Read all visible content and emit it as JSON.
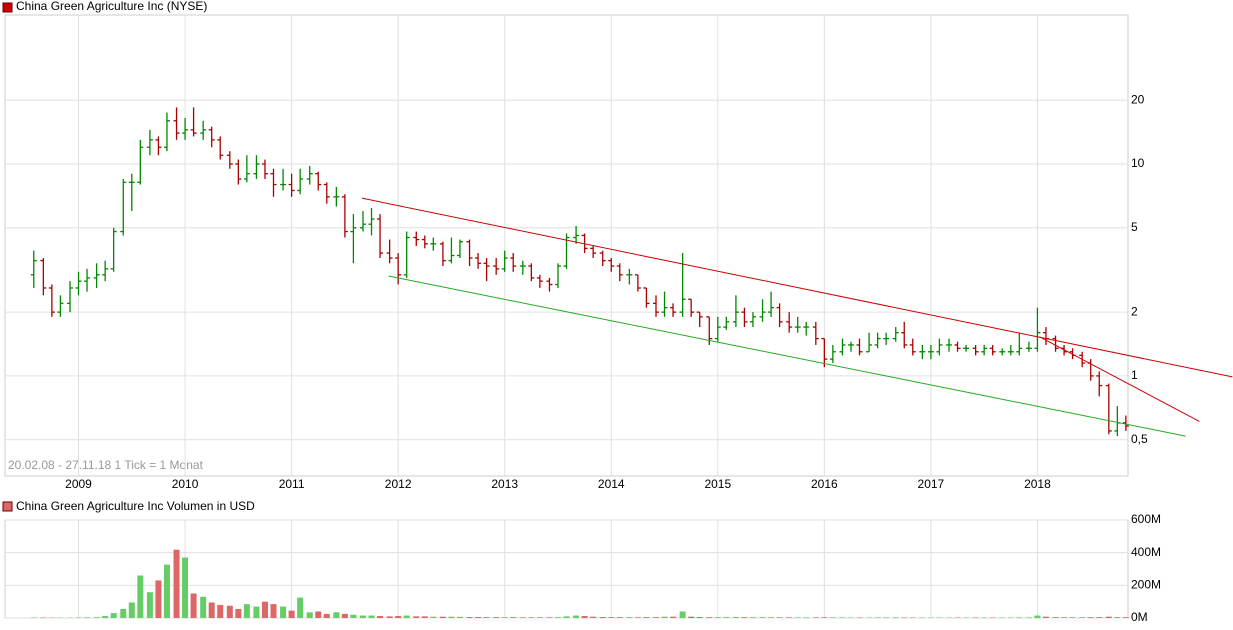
{
  "chart_data": [
    {
      "type": "ohlc",
      "title": "China Green Agriculture Inc (NYSE)",
      "color": "#cc0000",
      "subtitle": "20.02.08 - 27.11.18   1 Tick = 1 Monat",
      "log_scale": true,
      "grid": true,
      "up_color": "#008800",
      "down_color": "#aa0000",
      "xlim": [
        2008.31,
        2018.85
      ],
      "xticks": [
        2009,
        2010,
        2011,
        2012,
        2013,
        2014,
        2015,
        2016,
        2017,
        2018
      ],
      "ylim": [
        0.337,
        50.5
      ],
      "yticks": [
        {
          "value": 0.5,
          "label": "0,5"
        },
        1,
        2,
        5,
        10,
        20
      ],
      "x": [
        2008.58,
        2008.67,
        2008.75,
        2008.83,
        2008.92,
        2009,
        2009.08,
        2009.17,
        2009.25,
        2009.33,
        2009.42,
        2009.5,
        2009.58,
        2009.67,
        2009.75,
        2009.83,
        2009.92,
        2010,
        2010.08,
        2010.17,
        2010.25,
        2010.33,
        2010.42,
        2010.5,
        2010.58,
        2010.67,
        2010.75,
        2010.83,
        2010.92,
        2011,
        2011.08,
        2011.17,
        2011.25,
        2011.33,
        2011.42,
        2011.5,
        2011.58,
        2011.67,
        2011.75,
        2011.83,
        2011.92,
        2012,
        2012.08,
        2012.17,
        2012.25,
        2012.33,
        2012.42,
        2012.5,
        2012.58,
        2012.67,
        2012.75,
        2012.83,
        2012.92,
        2013,
        2013.08,
        2013.17,
        2013.25,
        2013.33,
        2013.42,
        2013.5,
        2013.58,
        2013.67,
        2013.75,
        2013.83,
        2013.92,
        2014,
        2014.08,
        2014.17,
        2014.25,
        2014.33,
        2014.42,
        2014.5,
        2014.58,
        2014.67,
        2014.75,
        2014.83,
        2014.92,
        2015,
        2015.08,
        2015.17,
        2015.25,
        2015.33,
        2015.42,
        2015.5,
        2015.58,
        2015.67,
        2015.75,
        2015.83,
        2015.92,
        2016,
        2016.08,
        2016.17,
        2016.25,
        2016.33,
        2016.42,
        2016.5,
        2016.58,
        2016.67,
        2016.75,
        2016.83,
        2016.92,
        2017,
        2017.08,
        2017.17,
        2017.25,
        2017.33,
        2017.42,
        2017.5,
        2017.58,
        2017.67,
        2017.75,
        2017.83,
        2017.92,
        2018,
        2018.08,
        2018.17,
        2018.25,
        2018.33,
        2018.42,
        2018.5,
        2018.58,
        2018.67,
        2018.75,
        2018.83
      ],
      "open": [
        3.0,
        3.5,
        2.6,
        2.0,
        2.2,
        2.6,
        2.8,
        2.9,
        3.0,
        3.2,
        4.8,
        8.2,
        8.2,
        12,
        13,
        12,
        16,
        14,
        14.5,
        14,
        14.5,
        13,
        11,
        10,
        8.5,
        9,
        10,
        9,
        8,
        8,
        7.5,
        8.5,
        9,
        8,
        7,
        7,
        4.8,
        5,
        5.2,
        5.5,
        3.8,
        3.6,
        3.0,
        4.5,
        4.4,
        4.2,
        4.2,
        3.5,
        3.7,
        4.3,
        3.6,
        3.4,
        3.3,
        3.2,
        3.6,
        3.3,
        3.3,
        2.9,
        2.8,
        2.7,
        3.3,
        4.5,
        4.6,
        4.0,
        3.8,
        3.5,
        3.3,
        3.0,
        3.0,
        2.6,
        2.2,
        2.0,
        2.1,
        2.0,
        2.3,
        2.0,
        1.9,
        1.5,
        1.7,
        1.8,
        2.0,
        1.8,
        1.9,
        2.0,
        2.1,
        1.8,
        1.7,
        1.7,
        1.7,
        1.5,
        1.2,
        1.3,
        1.4,
        1.4,
        1.3,
        1.4,
        1.5,
        1.5,
        1.6,
        1.4,
        1.3,
        1.3,
        1.3,
        1.4,
        1.4,
        1.35,
        1.35,
        1.3,
        1.35,
        1.3,
        1.3,
        1.3,
        1.35,
        1.35,
        1.6,
        1.5,
        1.35,
        1.3,
        1.25,
        1.15,
        1.0,
        0.9,
        0.55,
        0.6
      ],
      "high": [
        3.9,
        3.6,
        2.7,
        2.4,
        2.8,
        3.1,
        3.2,
        3.4,
        3.5,
        5.0,
        8.5,
        9.0,
        13,
        14.5,
        13.5,
        17.5,
        18.5,
        16.5,
        18.5,
        16,
        15,
        13.5,
        11.5,
        10.5,
        11,
        11,
        10.5,
        9.5,
        9.5,
        9,
        9.5,
        9.8,
        9.2,
        8.2,
        7.8,
        7.2,
        5.8,
        6,
        6.2,
        5.8,
        4.4,
        3.8,
        4.8,
        4.8,
        4.6,
        4.5,
        4.3,
        4.5,
        4.4,
        4.4,
        3.8,
        3.6,
        3.6,
        3.9,
        3.8,
        3.5,
        3.4,
        3.0,
        2.9,
        3.4,
        4.7,
        5.1,
        4.7,
        4.1,
        3.9,
        3.6,
        3.4,
        3.2,
        3.0,
        2.6,
        2.4,
        2.5,
        2.2,
        3.8,
        2.3,
        2.0,
        1.9,
        1.9,
        1.9,
        2.4,
        2.1,
        2.0,
        2.3,
        2.5,
        2.2,
        2.0,
        1.9,
        1.8,
        1.8,
        1.5,
        1.4,
        1.5,
        1.45,
        1.5,
        1.6,
        1.6,
        1.6,
        1.7,
        1.8,
        1.5,
        1.4,
        1.4,
        1.5,
        1.5,
        1.45,
        1.4,
        1.4,
        1.4,
        1.4,
        1.35,
        1.4,
        1.6,
        1.45,
        2.1,
        1.7,
        1.55,
        1.4,
        1.35,
        1.3,
        1.2,
        1.05,
        0.92,
        0.72,
        0.65
      ],
      "low": [
        2.6,
        2.4,
        1.9,
        1.9,
        2.0,
        2.4,
        2.5,
        2.6,
        2.8,
        3.1,
        4.6,
        6.0,
        8.0,
        11,
        11,
        11.5,
        13,
        13,
        13.5,
        13,
        12,
        10.5,
        9.5,
        8,
        8.2,
        8.5,
        8.5,
        7,
        7.5,
        7,
        7.2,
        8,
        7.5,
        6.5,
        6.3,
        4.5,
        3.4,
        4.8,
        4.6,
        3.6,
        3.4,
        2.7,
        2.9,
        4.1,
        4.0,
        3.9,
        3.3,
        3.4,
        3.6,
        3.3,
        3.2,
        2.8,
        3.0,
        3.1,
        3.1,
        3.0,
        2.8,
        2.6,
        2.5,
        2.6,
        3.2,
        4.2,
        3.8,
        3.6,
        3.3,
        3.1,
        2.8,
        2.7,
        2.5,
        2.1,
        1.9,
        1.9,
        1.9,
        1.9,
        1.9,
        1.7,
        1.4,
        1.45,
        1.65,
        1.7,
        1.7,
        1.7,
        1.8,
        1.9,
        1.7,
        1.6,
        1.6,
        1.55,
        1.4,
        1.1,
        1.15,
        1.25,
        1.3,
        1.25,
        1.3,
        1.35,
        1.4,
        1.45,
        1.35,
        1.25,
        1.2,
        1.2,
        1.25,
        1.3,
        1.3,
        1.3,
        1.25,
        1.25,
        1.25,
        1.25,
        1.25,
        1.25,
        1.3,
        1.3,
        1.4,
        1.3,
        1.25,
        1.2,
        1.1,
        0.95,
        0.8,
        0.53,
        0.52,
        0.55
      ],
      "close": [
        3.5,
        2.6,
        2.0,
        2.2,
        2.6,
        2.8,
        2.9,
        3.0,
        3.2,
        4.8,
        8.2,
        8.2,
        12,
        13,
        12,
        16,
        14,
        14.5,
        14,
        14.5,
        13,
        11,
        10,
        8.5,
        9,
        10,
        9,
        8,
        8,
        7.5,
        8.5,
        9,
        8,
        7,
        7,
        4.8,
        5,
        5.2,
        5.5,
        3.8,
        3.6,
        3.0,
        4.5,
        4.4,
        4.2,
        4.2,
        3.5,
        3.7,
        4.3,
        3.6,
        3.4,
        3.3,
        3.2,
        3.6,
        3.3,
        3.3,
        2.9,
        2.8,
        2.7,
        3.3,
        4.5,
        4.6,
        4.0,
        3.8,
        3.5,
        3.3,
        3.0,
        3.0,
        2.6,
        2.2,
        2.0,
        2.1,
        2.0,
        2.3,
        2.0,
        1.9,
        1.5,
        1.7,
        1.8,
        2.0,
        1.8,
        1.9,
        2.0,
        2.1,
        1.8,
        1.7,
        1.7,
        1.7,
        1.5,
        1.2,
        1.3,
        1.4,
        1.4,
        1.3,
        1.4,
        1.5,
        1.5,
        1.6,
        1.4,
        1.3,
        1.3,
        1.3,
        1.4,
        1.4,
        1.35,
        1.35,
        1.3,
        1.35,
        1.3,
        1.3,
        1.3,
        1.35,
        1.35,
        1.6,
        1.5,
        1.35,
        1.3,
        1.25,
        1.15,
        1.0,
        0.9,
        0.55,
        0.6,
        0.58
      ],
      "trendlines": [
        {
          "color": "#cc0000",
          "x": [
            2011.66,
            2019.83
          ],
          "y": [
            6.9,
            0.99
          ]
        },
        {
          "color": "#cc0000",
          "x": [
            2018.02,
            2019.52
          ],
          "y": [
            1.53,
            0.61
          ]
        },
        {
          "color": "#22aa22",
          "x": [
            2011.91,
            2019.39
          ],
          "y": [
            2.96,
            0.52
          ]
        }
      ]
    },
    {
      "type": "bar",
      "title": "China Green Agriculture Inc Volumen in USD",
      "color": "#dd6666",
      "grid": true,
      "up_color": "#66cc66",
      "down_color": "#dd6666",
      "xlim": [
        2008.31,
        2018.85
      ],
      "xticks": [
        2009,
        2010,
        2011,
        2012,
        2013,
        2014,
        2015,
        2016,
        2017,
        2018
      ],
      "ylim": [
        0,
        600000000
      ],
      "yticks": [
        {
          "value": 0,
          "label": "0M"
        },
        {
          "value": 200000000,
          "label": "200M"
        },
        {
          "value": 400000000,
          "label": "400M"
        },
        {
          "value": 600000000,
          "label": "600M"
        }
      ],
      "x": [
        2008.58,
        2008.67,
        2008.75,
        2008.83,
        2008.92,
        2009,
        2009.08,
        2009.17,
        2009.25,
        2009.33,
        2009.42,
        2009.5,
        2009.58,
        2009.67,
        2009.75,
        2009.83,
        2009.92,
        2010,
        2010.08,
        2010.17,
        2010.25,
        2010.33,
        2010.42,
        2010.5,
        2010.58,
        2010.67,
        2010.75,
        2010.83,
        2010.92,
        2011,
        2011.08,
        2011.17,
        2011.25,
        2011.33,
        2011.42,
        2011.5,
        2011.58,
        2011.67,
        2011.75,
        2011.83,
        2011.92,
        2012,
        2012.08,
        2012.17,
        2012.25,
        2012.33,
        2012.42,
        2012.5,
        2012.58,
        2012.67,
        2012.75,
        2012.83,
        2012.92,
        2013,
        2013.08,
        2013.17,
        2013.25,
        2013.33,
        2013.42,
        2013.5,
        2013.58,
        2013.67,
        2013.75,
        2013.83,
        2013.92,
        2014,
        2014.08,
        2014.17,
        2014.25,
        2014.33,
        2014.42,
        2014.5,
        2014.58,
        2014.67,
        2014.75,
        2014.83,
        2014.92,
        2015,
        2015.08,
        2015.17,
        2015.25,
        2015.33,
        2015.42,
        2015.5,
        2015.58,
        2015.67,
        2015.75,
        2015.83,
        2015.92,
        2016,
        2016.08,
        2016.17,
        2016.25,
        2016.33,
        2016.42,
        2016.5,
        2016.58,
        2016.67,
        2016.75,
        2016.83,
        2016.92,
        2017,
        2017.08,
        2017.17,
        2017.25,
        2017.33,
        2017.42,
        2017.5,
        2017.58,
        2017.67,
        2017.75,
        2017.83,
        2017.92,
        2018,
        2018.08,
        2018.17,
        2018.25,
        2018.33,
        2018.42,
        2018.5,
        2018.58,
        2018.67,
        2018.75,
        2018.83
      ],
      "values": [
        3000000,
        3000000,
        2000000,
        2000000,
        2000000,
        3000000,
        4000000,
        5000000,
        12000000,
        30000000,
        55000000,
        95000000,
        260000000,
        158000000,
        230000000,
        327000000,
        418000000,
        370000000,
        150000000,
        130000000,
        95000000,
        80000000,
        75000000,
        55000000,
        85000000,
        70000000,
        100000000,
        85000000,
        70000000,
        45000000,
        125000000,
        35000000,
        40000000,
        25000000,
        35000000,
        25000000,
        20000000,
        15000000,
        15000000,
        12000000,
        10000000,
        12000000,
        15000000,
        10000000,
        10000000,
        8000000,
        8000000,
        8000000,
        7000000,
        6000000,
        6000000,
        5000000,
        5000000,
        5000000,
        5000000,
        5000000,
        4000000,
        4000000,
        4000000,
        5000000,
        10000000,
        15000000,
        12000000,
        8000000,
        6000000,
        5000000,
        5000000,
        5000000,
        4000000,
        5000000,
        5000000,
        8000000,
        8000000,
        40000000,
        8000000,
        6000000,
        5000000,
        5000000,
        5000000,
        6000000,
        5000000,
        5000000,
        5000000,
        5000000,
        4000000,
        4000000,
        4000000,
        4000000,
        4000000,
        4000000,
        4000000,
        4000000,
        3000000,
        3000000,
        3000000,
        4000000,
        4000000,
        4000000,
        3000000,
        3000000,
        3000000,
        3000000,
        3000000,
        3000000,
        3000000,
        3000000,
        3000000,
        3000000,
        3000000,
        3000000,
        3000000,
        4000000,
        4000000,
        15000000,
        8000000,
        5000000,
        4000000,
        4000000,
        4000000,
        5000000,
        5000000,
        8000000,
        6000000,
        5000000
      ]
    }
  ]
}
